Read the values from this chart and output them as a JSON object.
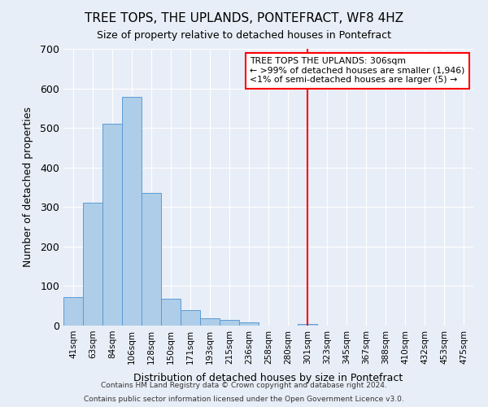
{
  "title": "TREE TOPS, THE UPLANDS, PONTEFRACT, WF8 4HZ",
  "subtitle": "Size of property relative to detached houses in Pontefract",
  "xlabel": "Distribution of detached houses by size in Pontefract",
  "ylabel": "Number of detached properties",
  "bar_labels": [
    "41sqm",
    "63sqm",
    "84sqm",
    "106sqm",
    "128sqm",
    "150sqm",
    "171sqm",
    "193sqm",
    "215sqm",
    "236sqm",
    "258sqm",
    "280sqm",
    "301sqm",
    "323sqm",
    "345sqm",
    "367sqm",
    "388sqm",
    "410sqm",
    "432sqm",
    "453sqm",
    "475sqm"
  ],
  "bar_values": [
    72,
    310,
    510,
    578,
    335,
    68,
    40,
    18,
    15,
    8,
    0,
    0,
    5,
    0,
    0,
    0,
    0,
    0,
    0,
    0,
    0
  ],
  "bar_color": "#aecde8",
  "bar_edge_color": "#5b9bd5",
  "vline_x": 12,
  "vline_color": "red",
  "ylim": [
    0,
    700
  ],
  "yticks": [
    0,
    100,
    200,
    300,
    400,
    500,
    600,
    700
  ],
  "annotation_title": "TREE TOPS THE UPLANDS: 306sqm",
  "annotation_line1": "← >99% of detached houses are smaller (1,946)",
  "annotation_line2": "<1% of semi-detached houses are larger (5) →",
  "footer1": "Contains HM Land Registry data © Crown copyright and database right 2024.",
  "footer2": "Contains public sector information licensed under the Open Government Licence v3.0.",
  "background_color": "#e8eef7"
}
